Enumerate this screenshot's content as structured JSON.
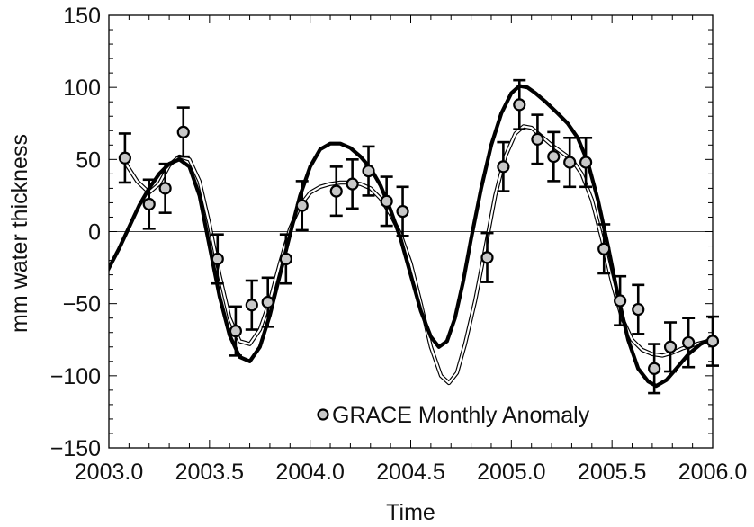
{
  "chart_data": {
    "type": "scatter",
    "title": "",
    "xlabel": "Time",
    "ylabel": "mm water thickness",
    "xlim": [
      2003.0,
      2006.0
    ],
    "ylim": [
      -150,
      150
    ],
    "xticks": [
      "2003.0",
      "2003.5",
      "2004.0",
      "2004.5",
      "2005.0",
      "2005.5",
      "2006.0"
    ],
    "yticks": [
      "150",
      "100",
      "50",
      "0",
      "−50",
      "−100",
      "−150"
    ],
    "zero_line": true,
    "grid": false,
    "legend_position": "bottom-center",
    "colors": {
      "points_fill": "#c8c8c8",
      "points_edge": "#000000",
      "thick_line": "#000000",
      "thin_line": "#000000"
    },
    "series": [
      {
        "name": "GRACE Monthly Anomaly",
        "kind": "points_with_errorbars",
        "points": [
          {
            "x": 2003.08,
            "y": 51,
            "err": 17
          },
          {
            "x": 2003.2,
            "y": 19,
            "err": 17
          },
          {
            "x": 2003.28,
            "y": 30,
            "err": 17
          },
          {
            "x": 2003.37,
            "y": 69,
            "err": 17
          },
          {
            "x": 2003.54,
            "y": -19,
            "err": 17
          },
          {
            "x": 2003.63,
            "y": -69,
            "err": 17
          },
          {
            "x": 2003.71,
            "y": -51,
            "err": 17
          },
          {
            "x": 2003.79,
            "y": -49,
            "err": 17
          },
          {
            "x": 2003.88,
            "y": -19,
            "err": 17
          },
          {
            "x": 2003.96,
            "y": 18,
            "err": 17
          },
          {
            "x": 2004.13,
            "y": 28,
            "err": 17
          },
          {
            "x": 2004.21,
            "y": 33,
            "err": 17
          },
          {
            "x": 2004.29,
            "y": 42,
            "err": 17
          },
          {
            "x": 2004.38,
            "y": 21,
            "err": 17
          },
          {
            "x": 2004.46,
            "y": 14,
            "err": 17
          },
          {
            "x": 2004.88,
            "y": -18,
            "err": 17
          },
          {
            "x": 2004.96,
            "y": 45,
            "err": 17
          },
          {
            "x": 2005.04,
            "y": 88,
            "err": 17
          },
          {
            "x": 2005.13,
            "y": 64,
            "err": 17
          },
          {
            "x": 2005.21,
            "y": 52,
            "err": 17
          },
          {
            "x": 2005.29,
            "y": 48,
            "err": 17
          },
          {
            "x": 2005.37,
            "y": 48,
            "err": 17
          },
          {
            "x": 2005.46,
            "y": -12,
            "err": 17
          },
          {
            "x": 2005.54,
            "y": -48,
            "err": 17
          },
          {
            "x": 2005.63,
            "y": -54,
            "err": 17
          },
          {
            "x": 2005.71,
            "y": -95,
            "err": 17
          },
          {
            "x": 2005.79,
            "y": -80,
            "err": 17
          },
          {
            "x": 2005.88,
            "y": -77,
            "err": 17
          },
          {
            "x": 2006.0,
            "y": -76,
            "err": 17
          }
        ]
      },
      {
        "kind": "thick_line",
        "points": [
          [
            2002.99,
            -28
          ],
          [
            2003.05,
            -12
          ],
          [
            2003.1,
            3
          ],
          [
            2003.15,
            18
          ],
          [
            2003.2,
            30
          ],
          [
            2003.25,
            40
          ],
          [
            2003.3,
            47
          ],
          [
            2003.35,
            50
          ],
          [
            2003.4,
            45
          ],
          [
            2003.45,
            25
          ],
          [
            2003.5,
            -10
          ],
          [
            2003.55,
            -45
          ],
          [
            2003.6,
            -72
          ],
          [
            2003.65,
            -87
          ],
          [
            2003.7,
            -90
          ],
          [
            2003.75,
            -80
          ],
          [
            2003.8,
            -58
          ],
          [
            2003.85,
            -30
          ],
          [
            2003.9,
            -2
          ],
          [
            2003.95,
            25
          ],
          [
            2004.0,
            45
          ],
          [
            2004.05,
            57
          ],
          [
            2004.1,
            61
          ],
          [
            2004.15,
            61
          ],
          [
            2004.2,
            58
          ],
          [
            2004.25,
            52
          ],
          [
            2004.3,
            44
          ],
          [
            2004.35,
            32
          ],
          [
            2004.4,
            15
          ],
          [
            2004.45,
            -5
          ],
          [
            2004.5,
            -30
          ],
          [
            2004.55,
            -55
          ],
          [
            2004.6,
            -73
          ],
          [
            2004.64,
            -80
          ],
          [
            2004.68,
            -76
          ],
          [
            2004.72,
            -60
          ],
          [
            2004.76,
            -35
          ],
          [
            2004.8,
            -5
          ],
          [
            2004.85,
            30
          ],
          [
            2004.9,
            60
          ],
          [
            2004.95,
            82
          ],
          [
            2005.0,
            96
          ],
          [
            2005.04,
            101
          ],
          [
            2005.08,
            100
          ],
          [
            2005.12,
            96
          ],
          [
            2005.17,
            90
          ],
          [
            2005.23,
            82
          ],
          [
            2005.28,
            75
          ],
          [
            2005.33,
            65
          ],
          [
            2005.38,
            48
          ],
          [
            2005.43,
            22
          ],
          [
            2005.48,
            -10
          ],
          [
            2005.53,
            -45
          ],
          [
            2005.58,
            -75
          ],
          [
            2005.63,
            -95
          ],
          [
            2005.68,
            -104
          ],
          [
            2005.72,
            -107
          ],
          [
            2005.77,
            -103
          ],
          [
            2005.82,
            -95
          ],
          [
            2005.88,
            -85
          ],
          [
            2005.94,
            -78
          ],
          [
            2006.0,
            -74
          ]
        ]
      },
      {
        "kind": "double_line",
        "points": [
          [
            2003.08,
            48
          ],
          [
            2003.14,
            35
          ],
          [
            2003.2,
            27
          ],
          [
            2003.25,
            33
          ],
          [
            2003.3,
            46
          ],
          [
            2003.35,
            52
          ],
          [
            2003.4,
            50
          ],
          [
            2003.45,
            35
          ],
          [
            2003.5,
            5
          ],
          [
            2003.55,
            -30
          ],
          [
            2003.6,
            -60
          ],
          [
            2003.65,
            -76
          ],
          [
            2003.7,
            -78
          ],
          [
            2003.75,
            -68
          ],
          [
            2003.8,
            -48
          ],
          [
            2003.85,
            -22
          ],
          [
            2003.9,
            2
          ],
          [
            2003.95,
            18
          ],
          [
            2004.0,
            27
          ],
          [
            2004.05,
            31
          ],
          [
            2004.1,
            33
          ],
          [
            2004.15,
            34
          ],
          [
            2004.2,
            34
          ],
          [
            2004.25,
            33
          ],
          [
            2004.3,
            30
          ],
          [
            2004.35,
            23
          ],
          [
            2004.4,
            12
          ],
          [
            2004.45,
            -2
          ],
          [
            2004.5,
            -22
          ],
          [
            2004.55,
            -50
          ],
          [
            2004.6,
            -80
          ],
          [
            2004.65,
            -100
          ],
          [
            2004.69,
            -105
          ],
          [
            2004.73,
            -98
          ],
          [
            2004.77,
            -78
          ],
          [
            2004.82,
            -48
          ],
          [
            2004.87,
            -12
          ],
          [
            2004.92,
            25
          ],
          [
            2004.97,
            52
          ],
          [
            2005.02,
            68
          ],
          [
            2005.06,
            73
          ],
          [
            2005.1,
            72
          ],
          [
            2005.15,
            66
          ],
          [
            2005.2,
            60
          ],
          [
            2005.25,
            55
          ],
          [
            2005.3,
            50
          ],
          [
            2005.35,
            40
          ],
          [
            2005.4,
            22
          ],
          [
            2005.45,
            -5
          ],
          [
            2005.5,
            -35
          ],
          [
            2005.55,
            -60
          ],
          [
            2005.6,
            -75
          ],
          [
            2005.65,
            -82
          ],
          [
            2005.7,
            -85
          ],
          [
            2005.75,
            -86
          ],
          [
            2005.8,
            -84
          ],
          [
            2005.85,
            -81
          ],
          [
            2005.92,
            -78
          ],
          [
            2006.0,
            -75
          ]
        ]
      }
    ]
  }
}
